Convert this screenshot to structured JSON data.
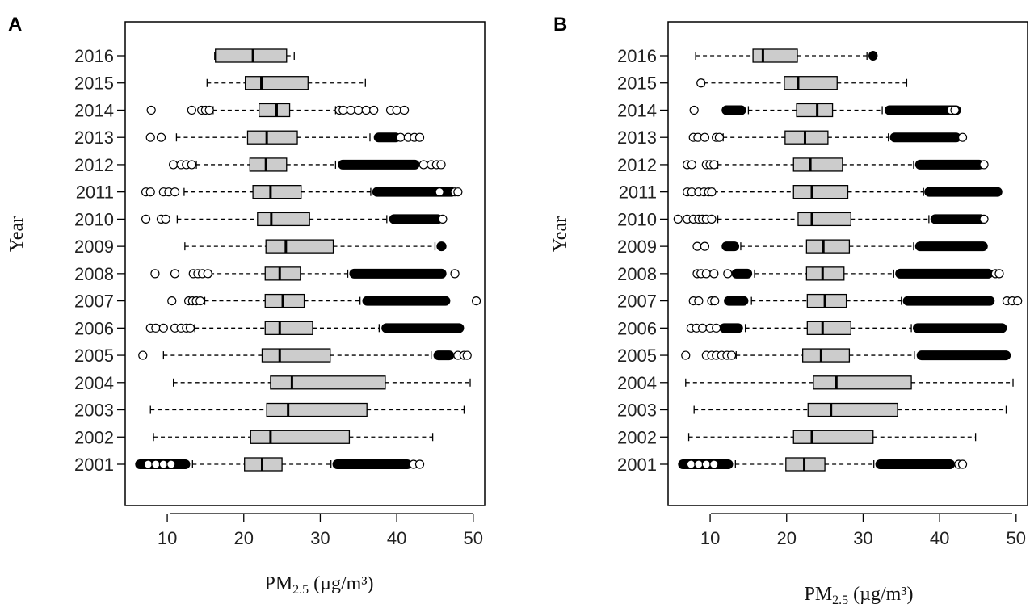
{
  "chart_data": [
    {
      "type": "boxplot",
      "panel_label": "A",
      "orientation": "horizontal",
      "xlabel_main": "PM",
      "xlabel_sub": "2.5",
      "xlabel_unit": "(µg/m³)",
      "ylabel": "Year",
      "xlim": [
        4.5,
        51.5
      ],
      "xticks": [
        10,
        20,
        30,
        40,
        50
      ],
      "categories": [
        "2016",
        "2015",
        "2014",
        "2013",
        "2012",
        "2011",
        "2010",
        "2009",
        "2008",
        "2007",
        "2006",
        "2005",
        "2004",
        "2003",
        "2002",
        "2001"
      ],
      "boxes": [
        {
          "year": "2016",
          "whisker_low": 16.2,
          "q1": 16.3,
          "median": 21.2,
          "q3": 25.6,
          "whisker_high": 26.6,
          "outliers": [],
          "outlier_bands": []
        },
        {
          "year": "2015",
          "whisker_low": 15.2,
          "q1": 20.2,
          "median": 22.3,
          "q3": 28.4,
          "whisker_high": 35.9,
          "outliers": [],
          "outlier_bands": []
        },
        {
          "year": "2014",
          "whisker_low": 16.0,
          "q1": 22.0,
          "median": 24.3,
          "q3": 26.0,
          "whisker_high": 32.0,
          "outliers": [
            7.9,
            13.2,
            14.5,
            15.0,
            15.5,
            32.5,
            33.0,
            34.0,
            35.0,
            36.0,
            37.0,
            39.2,
            40.0,
            41.0
          ],
          "outlier_bands": []
        },
        {
          "year": "2013",
          "whisker_low": 11.2,
          "q1": 20.5,
          "median": 23.0,
          "q3": 27.0,
          "whisker_high": 36.5,
          "outliers": [
            7.8,
            9.2,
            40.5,
            41.5,
            42.3,
            43.0
          ],
          "outlier_bands": [
            [
              37.0,
              40.5
            ]
          ]
        },
        {
          "year": "2012",
          "whisker_low": 13.8,
          "q1": 20.8,
          "median": 22.9,
          "q3": 25.6,
          "whisker_high": 32.0,
          "outliers": [
            10.8,
            11.8,
            12.5,
            13.2,
            43.5,
            44.5,
            45.2,
            45.8
          ],
          "outlier_bands": [
            [
              32.3,
              43.0
            ]
          ]
        },
        {
          "year": "2011",
          "whisker_low": 12.2,
          "q1": 21.2,
          "median": 23.5,
          "q3": 27.5,
          "whisker_high": 36.6,
          "outliers": [
            7.2,
            7.8,
            9.5,
            10.2,
            11.0,
            45.6,
            47.6,
            48.0
          ],
          "outlier_bands": [
            [
              36.8,
              47.8
            ]
          ]
        },
        {
          "year": "2010",
          "whisker_low": 11.3,
          "q1": 21.8,
          "median": 23.6,
          "q3": 28.6,
          "whisker_high": 38.7,
          "outliers": [
            7.2,
            9.2,
            9.8,
            46.0
          ],
          "outlier_bands": [
            [
              39.0,
              46.0
            ]
          ]
        },
        {
          "year": "2009",
          "whisker_low": 12.3,
          "q1": 22.9,
          "median": 25.5,
          "q3": 31.7,
          "whisker_high": 45.0,
          "outliers": [],
          "outlier_bands": [
            [
              45.2,
              46.5
            ]
          ]
        },
        {
          "year": "2008",
          "whisker_low": 15.6,
          "q1": 22.8,
          "median": 24.7,
          "q3": 27.4,
          "whisker_high": 33.6,
          "outliers": [
            8.4,
            11.0,
            13.4,
            14.0,
            14.6,
            15.3,
            47.6
          ],
          "outlier_bands": [
            [
              33.8,
              46.5
            ]
          ]
        },
        {
          "year": "2007",
          "whisker_low": 14.9,
          "q1": 22.8,
          "median": 25.1,
          "q3": 27.9,
          "whisker_high": 35.2,
          "outliers": [
            10.6,
            12.8,
            13.3,
            13.8,
            14.3,
            50.4
          ],
          "outlier_bands": [
            [
              35.5,
              47.0
            ]
          ]
        },
        {
          "year": "2006",
          "whisker_low": 13.6,
          "q1": 22.8,
          "median": 24.7,
          "q3": 29.0,
          "whisker_high": 37.7,
          "outliers": [
            7.8,
            8.5,
            9.5,
            11.0,
            11.8,
            12.5,
            13.0
          ],
          "outlier_bands": [
            [
              38.0,
              48.8
            ]
          ]
        },
        {
          "year": "2005",
          "whisker_low": 9.5,
          "q1": 22.4,
          "median": 24.7,
          "q3": 31.3,
          "whisker_high": 44.5,
          "outliers": [
            6.8,
            48.0,
            48.8,
            49.2
          ],
          "outlier_bands": [
            [
              44.8,
              47.5
            ]
          ]
        },
        {
          "year": "2004",
          "whisker_low": 10.8,
          "q1": 23.5,
          "median": 26.3,
          "q3": 38.5,
          "whisker_high": 49.6,
          "outliers": [],
          "outlier_bands": []
        },
        {
          "year": "2003",
          "whisker_low": 7.8,
          "q1": 23.0,
          "median": 25.8,
          "q3": 36.1,
          "whisker_high": 48.8,
          "outliers": [],
          "outlier_bands": []
        },
        {
          "year": "2002",
          "whisker_low": 8.2,
          "q1": 20.9,
          "median": 23.5,
          "q3": 33.8,
          "whisker_high": 44.7,
          "outliers": [],
          "outlier_bands": []
        },
        {
          "year": "2001",
          "whisker_low": 13.3,
          "q1": 20.1,
          "median": 22.4,
          "q3": 25.0,
          "whisker_high": 31.4,
          "outliers": [
            7.5,
            8.5,
            9.5,
            10.5,
            42.2,
            43.0
          ],
          "outlier_bands": [
            [
              5.8,
              13.0
            ],
            [
              31.6,
              42.0
            ]
          ]
        }
      ]
    },
    {
      "type": "boxplot",
      "panel_label": "B",
      "orientation": "horizontal",
      "xlabel_main": "PM",
      "xlabel_sub": "2.5",
      "xlabel_unit": "(µg/m³)",
      "ylabel": "Year",
      "xlim": [
        4.5,
        51.5
      ],
      "xticks": [
        10,
        20,
        30,
        40,
        50
      ],
      "categories": [
        "2016",
        "2015",
        "2014",
        "2013",
        "2012",
        "2011",
        "2010",
        "2009",
        "2008",
        "2007",
        "2006",
        "2005",
        "2004",
        "2003",
        "2002",
        "2001"
      ],
      "boxes": [
        {
          "year": "2016",
          "whisker_low": 8.1,
          "q1": 15.6,
          "median": 16.9,
          "q3": 21.4,
          "whisker_high": 30.5,
          "outliers": [],
          "outlier_bands": [
            [
              30.7,
              31.9
            ]
          ]
        },
        {
          "year": "2015",
          "whisker_low": 9.2,
          "q1": 19.7,
          "median": 21.5,
          "q3": 26.6,
          "whisker_high": 35.7,
          "outliers": [
            8.8
          ],
          "outlier_bands": []
        },
        {
          "year": "2014",
          "whisker_low": 15.0,
          "q1": 21.3,
          "median": 24.0,
          "q3": 26.0,
          "whisker_high": 32.5,
          "outliers": [
            7.9,
            41.5,
            42.0
          ],
          "outlier_bands": [
            [
              11.5,
              14.7
            ],
            [
              32.8,
              42.8
            ]
          ]
        },
        {
          "year": "2013",
          "whisker_low": 11.7,
          "q1": 19.8,
          "median": 22.4,
          "q3": 25.4,
          "whisker_high": 33.3,
          "outliers": [
            7.8,
            8.4,
            9.3,
            10.8,
            11.2,
            43.0
          ],
          "outlier_bands": [
            [
              33.5,
              42.8
            ]
          ]
        },
        {
          "year": "2012",
          "whisker_low": 11.0,
          "q1": 20.9,
          "median": 23.1,
          "q3": 27.3,
          "whisker_high": 36.6,
          "outliers": [
            7.0,
            7.6,
            9.5,
            10.0,
            10.5,
            45.8
          ],
          "outlier_bands": [
            [
              36.8,
              45.8
            ]
          ]
        },
        {
          "year": "2011",
          "whisker_low": 10.5,
          "q1": 20.9,
          "median": 23.3,
          "q3": 28.0,
          "whisker_high": 37.9,
          "outliers": [
            7.0,
            7.6,
            8.5,
            9.2,
            9.8,
            10.2
          ],
          "outlier_bands": [
            [
              38.0,
              48.2
            ]
          ]
        },
        {
          "year": "2010",
          "whisker_low": 11.0,
          "q1": 21.5,
          "median": 23.3,
          "q3": 28.4,
          "whisker_high": 38.6,
          "outliers": [
            5.8,
            7.0,
            7.8,
            8.5,
            9.0,
            9.5,
            10.2,
            45.8
          ],
          "outlier_bands": [
            [
              38.8,
              46.0
            ]
          ]
        },
        {
          "year": "2009",
          "whisker_low": 14.0,
          "q1": 22.6,
          "median": 24.8,
          "q3": 28.2,
          "whisker_high": 36.6,
          "outliers": [
            8.3,
            9.3
          ],
          "outlier_bands": [
            [
              11.5,
              13.8
            ],
            [
              36.8,
              46.3
            ]
          ]
        },
        {
          "year": "2008",
          "whisker_low": 15.8,
          "q1": 22.6,
          "median": 24.7,
          "q3": 27.5,
          "whisker_high": 34.0,
          "outliers": [
            8.3,
            8.8,
            9.5,
            10.5,
            12.3,
            47.3,
            47.8
          ],
          "outlier_bands": [
            [
              12.8,
              15.5
            ],
            [
              34.2,
              47.0
            ]
          ]
        },
        {
          "year": "2007",
          "whisker_low": 15.4,
          "q1": 22.7,
          "median": 25.0,
          "q3": 27.8,
          "whisker_high": 35.0,
          "outliers": [
            7.8,
            8.5,
            10.2,
            10.6,
            48.8,
            49.5,
            50.2
          ],
          "outlier_bands": [
            [
              11.8,
              15.0
            ],
            [
              35.2,
              47.2
            ]
          ]
        },
        {
          "year": "2006",
          "whisker_low": 14.6,
          "q1": 22.7,
          "median": 24.7,
          "q3": 28.4,
          "whisker_high": 36.3,
          "outliers": [
            7.5,
            8.2,
            9.0,
            10.0,
            10.8
          ],
          "outlier_bands": [
            [
              11.2,
              14.3
            ],
            [
              36.5,
              48.8
            ]
          ]
        },
        {
          "year": "2005",
          "whisker_low": 13.4,
          "q1": 22.1,
          "median": 24.5,
          "q3": 28.2,
          "whisker_high": 36.7,
          "outliers": [
            6.8,
            9.5,
            10.2,
            10.8,
            11.5,
            12.2,
            12.8
          ],
          "outlier_bands": [
            [
              37.0,
              49.3
            ]
          ]
        },
        {
          "year": "2004",
          "whisker_low": 6.8,
          "q1": 23.5,
          "median": 26.5,
          "q3": 36.3,
          "whisker_high": 49.6,
          "outliers": [],
          "outlier_bands": []
        },
        {
          "year": "2003",
          "whisker_low": 7.9,
          "q1": 22.8,
          "median": 25.8,
          "q3": 34.5,
          "whisker_high": 48.7,
          "outliers": [],
          "outlier_bands": []
        },
        {
          "year": "2002",
          "whisker_low": 7.2,
          "q1": 20.9,
          "median": 23.3,
          "q3": 31.3,
          "whisker_high": 44.7,
          "outliers": [],
          "outlier_bands": []
        },
        {
          "year": "2001",
          "whisker_low": 13.3,
          "q1": 19.9,
          "median": 22.3,
          "q3": 25.0,
          "whisker_high": 31.4,
          "outliers": [
            7.5,
            8.5,
            9.5,
            10.5,
            42.5,
            43.0
          ],
          "outlier_bands": [
            [
              5.8,
              13.0
            ],
            [
              31.6,
              42.0
            ]
          ]
        }
      ]
    }
  ]
}
